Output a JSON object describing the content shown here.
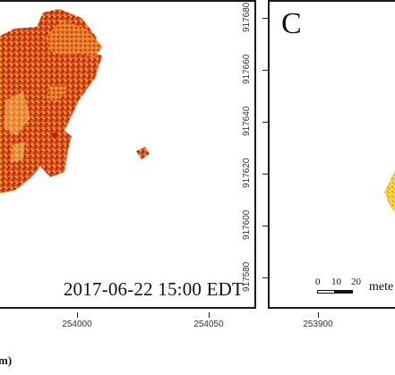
{
  "left_panel": {
    "timestamp": "2017-06-22 15:00 EDT",
    "x_ticks": [
      "254000",
      "254050"
    ],
    "axis_label_fragment": "m)"
  },
  "right_panel": {
    "letter": "C",
    "y_ticks": [
      "917680",
      "917660",
      "917640",
      "917620",
      "917600",
      "917580"
    ],
    "x_ticks": [
      "253900"
    ],
    "scalebar": {
      "labels": [
        "0",
        "10",
        "20"
      ],
      "unit": "mete"
    }
  },
  "colors": {
    "deep_red": "#c41e0e",
    "orange": "#e8611a",
    "amber": "#f29a2e",
    "pale_yellow": "#f7d36a",
    "yellow": "#f3e24c"
  }
}
